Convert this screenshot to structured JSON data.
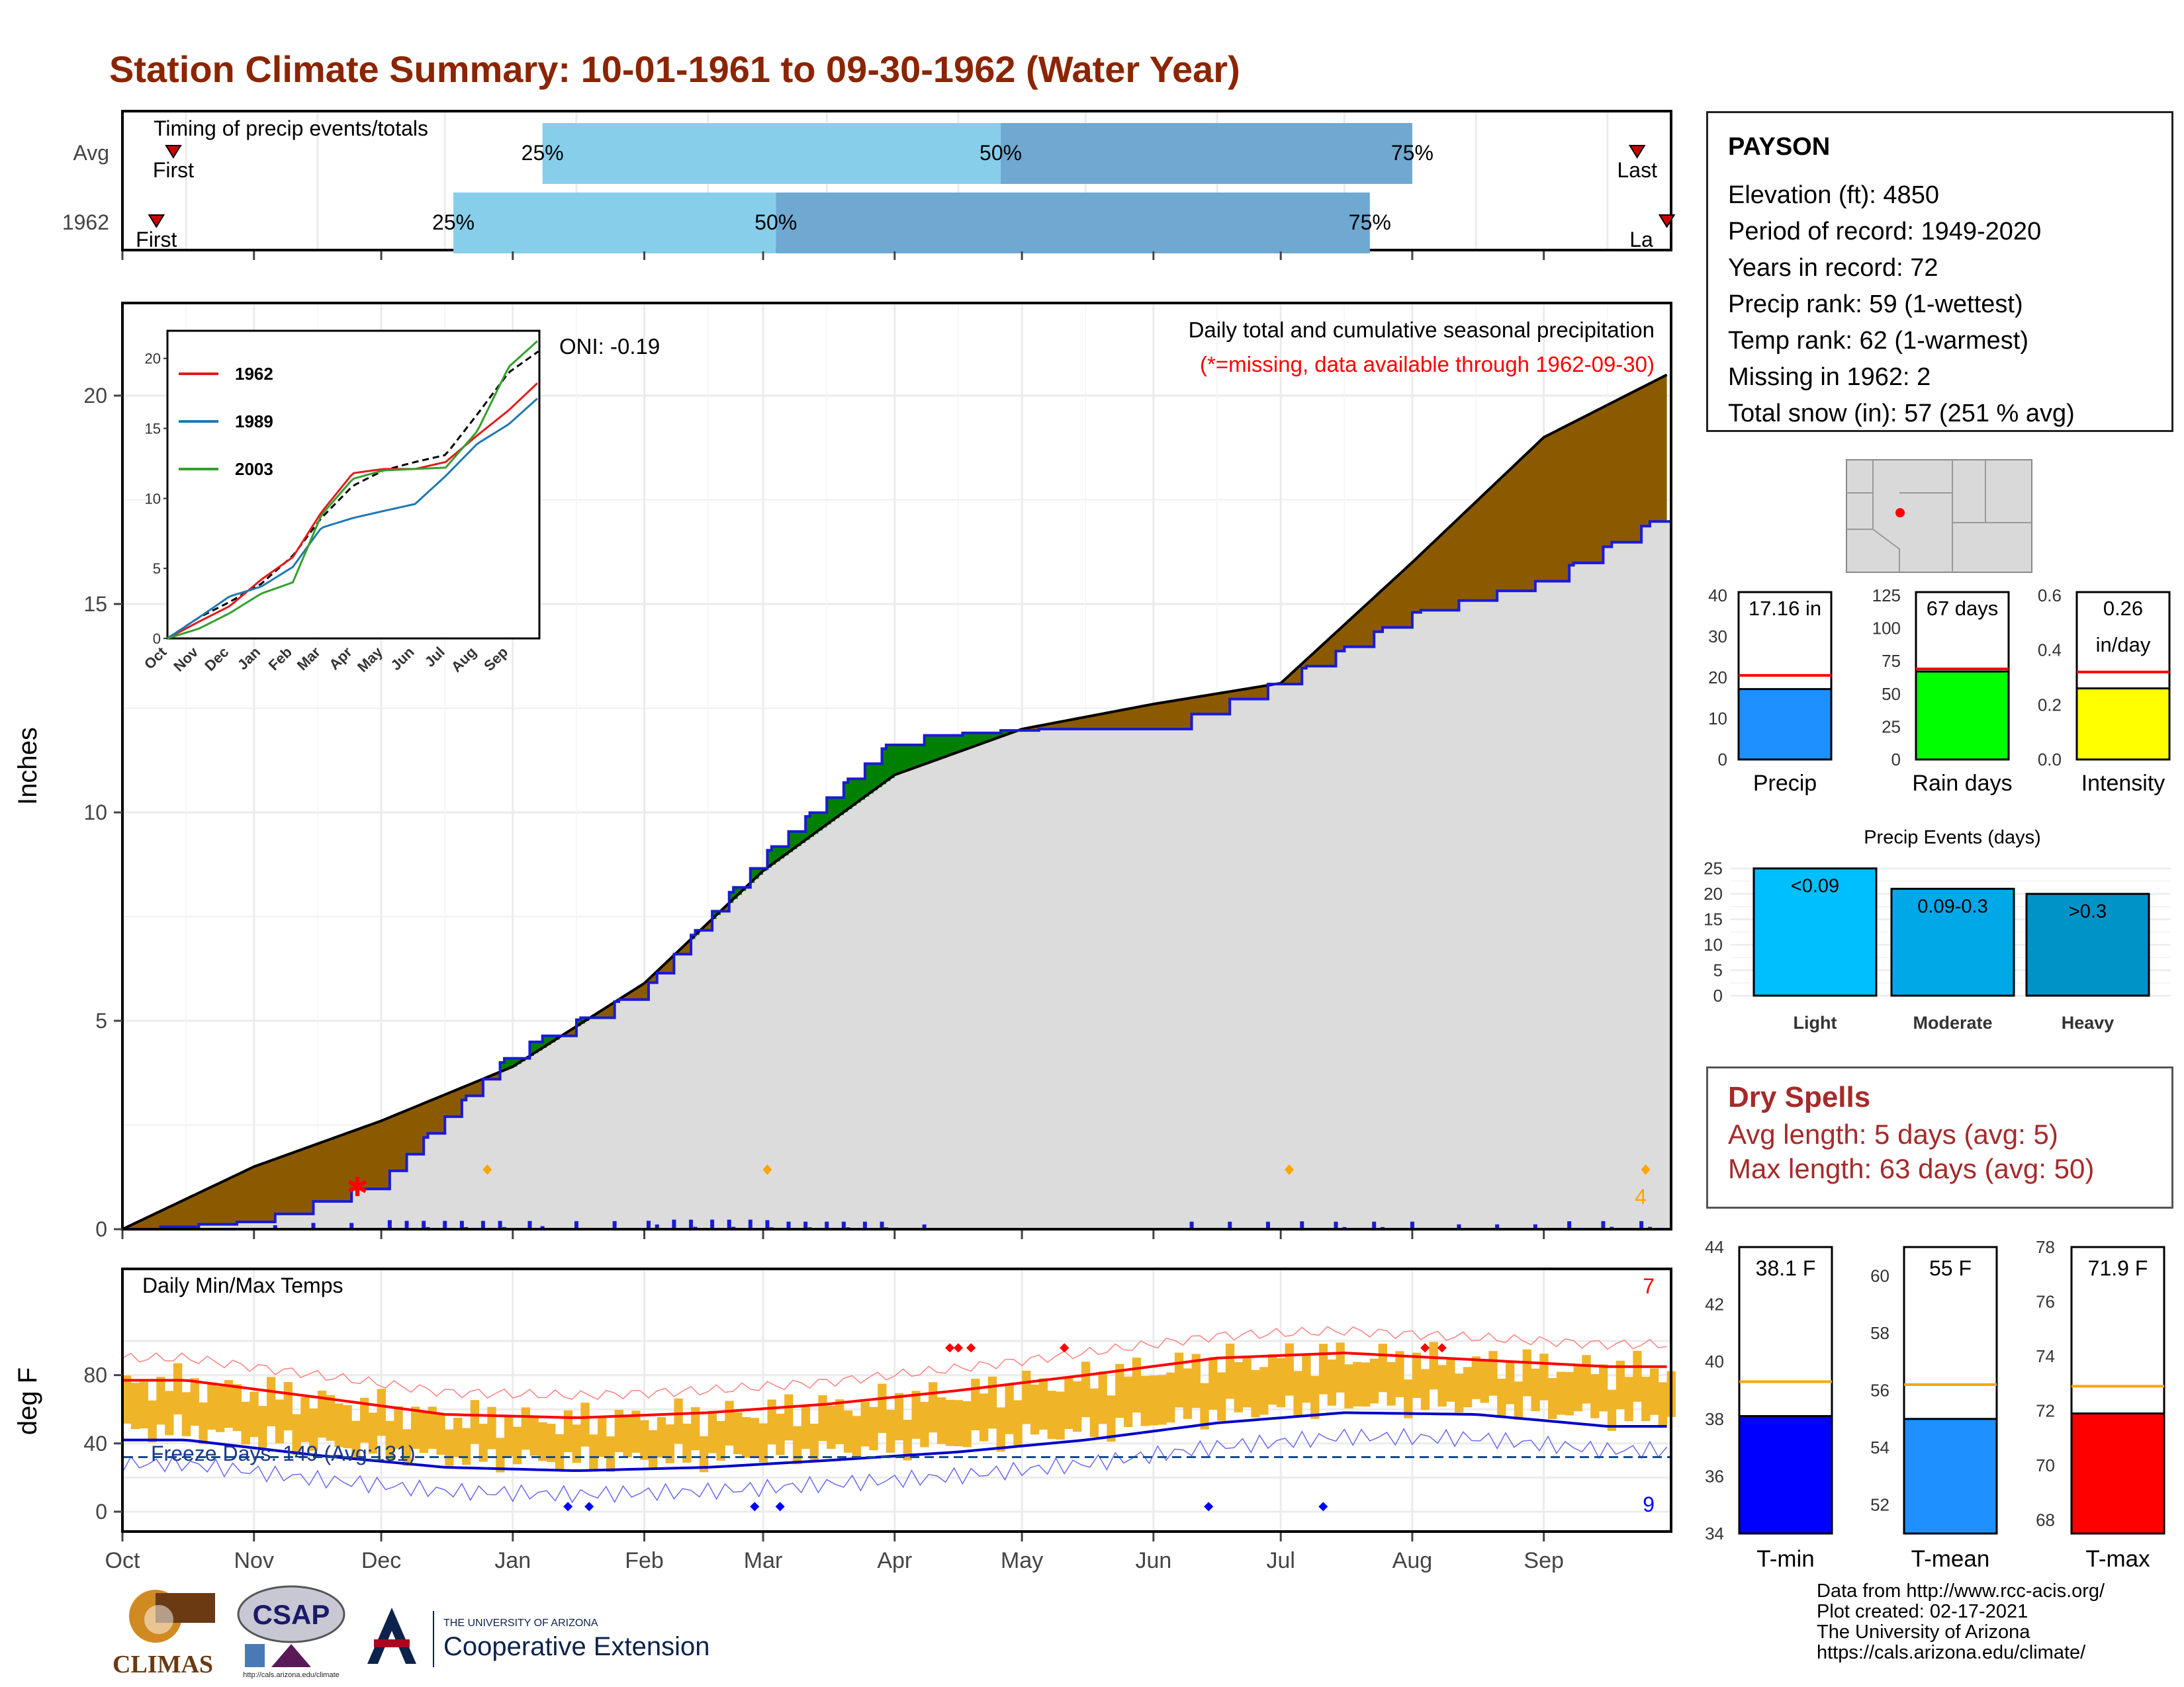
{
  "page": {
    "title": "Station Climate Summary: 10-01-1961 to 09-30-1962 (Water Year)",
    "title_color": "#8b2500"
  },
  "timing_panel": {
    "title": "Timing of precip events/totals",
    "rows": [
      {
        "label": "Avg",
        "first_label": "First",
        "last_label": "Last",
        "p25_label": "25%",
        "p50_label": "50%",
        "p75_label": "75%",
        "first_day": 12,
        "p25_day": 99,
        "p50_day": 207,
        "p75_day": 304,
        "last_day": 357
      },
      {
        "label": "1962",
        "first_label": "First",
        "last_label": "La",
        "p25_label": "25%",
        "p50_label": "50%",
        "p75_label": "75%",
        "first_day": 8,
        "p25_day": 78,
        "p50_day": 154,
        "p75_day": 294,
        "last_day": 364
      }
    ]
  },
  "months": [
    "Oct",
    "Nov",
    "Dec",
    "Jan",
    "Feb",
    "Mar",
    "Apr",
    "May",
    "Jun",
    "Jul",
    "Aug",
    "Sep"
  ],
  "precip_panel": {
    "y_label": "Inches",
    "y_ticks": [
      "0",
      "5",
      "10",
      "15",
      "20"
    ],
    "annotation_title": "Daily total and cumulative seasonal precipitation",
    "annotation_missing": "(*=missing, data available through 1962-09-30)",
    "oni_label": "ONI: -0.19",
    "max_count_label": "4",
    "colors": {
      "deficit": "#8b5a00",
      "surplus": "#008000",
      "observed": "#1a1ad6",
      "normal_fill": "#dcdcdc",
      "missing": "#ff0000",
      "extreme": "#ffa500"
    }
  },
  "inset": {
    "y_ticks": [
      "0",
      "5",
      "10",
      "15",
      "20"
    ],
    "x_ticks": [
      "Oct",
      "Nov",
      "Dec",
      "Jan",
      "Feb",
      "Mar",
      "Apr",
      "May",
      "Jun",
      "Jul",
      "Aug",
      "Sep"
    ],
    "legend": [
      {
        "name": "1962",
        "color": "#e31a1c"
      },
      {
        "name": "1989",
        "color": "#1f78b4"
      },
      {
        "name": "2003",
        "color": "#33a02c"
      }
    ]
  },
  "temp_panel": {
    "y_label": "deg F",
    "title": "Daily Min/Max Temps",
    "y_ticks": [
      "0",
      "40",
      "80"
    ],
    "freeze_label": "Freeze Days: 149 (Avg:131)",
    "max_record_count": "7",
    "min_record_count": "9"
  },
  "station_box": {
    "name": "PAYSON",
    "lines": [
      "Elevation (ft): 4850",
      "Period of record: 1949-2020",
      "Years in record: 72",
      "Precip rank: 59 (1-wettest)",
      "Temp rank: 62 (1-warmest)",
      "Missing in 1962: 2",
      "Total snow (in): 57 (251 % avg)"
    ]
  },
  "mini_bars": {
    "precip": {
      "label": "Precip",
      "value_label": "17.16 in",
      "value": 17.16,
      "avg": 20.5,
      "ymax": 40,
      "ticks": [
        "0",
        "10",
        "20",
        "30",
        "40"
      ],
      "color": "#1e90ff"
    },
    "rain_days": {
      "label": "Rain days",
      "value_label": "67 days",
      "value": 67,
      "avg": 69,
      "ymax": 125,
      "ticks": [
        "0",
        "25",
        "50",
        "75",
        "100",
        "125"
      ],
      "color": "#00ff00"
    },
    "intensity": {
      "label": "Intensity",
      "value_label": "0.26",
      "value_label2": "in/day",
      "value": 0.26,
      "avg": 0.32,
      "ymax": 0.6,
      "ticks": [
        "0.0",
        "0.2",
        "0.4",
        "0.6"
      ],
      "color": "#ffff00"
    }
  },
  "events_panel": {
    "title": "Precip Events (days)",
    "ticks": [
      "0",
      "5",
      "10",
      "15",
      "20",
      "25"
    ],
    "bars": [
      {
        "label": "Light",
        "value": 25,
        "value_label": "<0.09",
        "color": "#00bfff"
      },
      {
        "label": "Moderate",
        "value": 21,
        "value_label": "0.09-0.3",
        "color": "#00a8e8"
      },
      {
        "label": "Heavy",
        "value": 20,
        "value_label": ">0.3",
        "color": "#0093c8"
      }
    ]
  },
  "dry_spells": {
    "title": "Dry Spells",
    "avg_length": "Avg length: 5 days (avg: 5)",
    "max_length": "Max length: 63 days (avg: 50)",
    "color": "#a52a2a"
  },
  "temp_bars": {
    "tmin": {
      "label": "T-min",
      "value_label": "38.1 F",
      "value": 38.1,
      "avg": 39.3,
      "ymin": 34,
      "ymax": 44,
      "ticks": [
        "34",
        "36",
        "38",
        "40",
        "42",
        "44"
      ],
      "color": "#0000ff"
    },
    "tmean": {
      "label": "T-mean",
      "value_label": "55 F",
      "value": 55.0,
      "avg": 56.2,
      "ymin": 51,
      "ymax": 61,
      "ticks": [
        "52",
        "54",
        "56",
        "58",
        "60"
      ],
      "color": "#1e90ff"
    },
    "tmax": {
      "label": "T-max",
      "value_label": "71.9 F",
      "value": 71.9,
      "avg": 72.9,
      "ymin": 67.5,
      "ymax": 78,
      "ticks": [
        "68",
        "70",
        "72",
        "74",
        "76",
        "78"
      ],
      "color": "#ff0000"
    }
  },
  "credits": {
    "lines": [
      "Data from http://www.rcc-acis.org/",
      "Plot created: 02-17-2021",
      "The University of Arizona",
      "https://cals.arizona.edu/climate/"
    ]
  },
  "logos": {
    "climas": "CLIMAS",
    "csap": "CSAP",
    "csap_url": "http://cals.arizona.edu/climate",
    "ua_top": "THE UNIVERSITY OF ARIZONA",
    "ua_main": "Cooperative Extension"
  },
  "chart_data": [
    {
      "type": "area",
      "title": "Daily total and cumulative seasonal precipitation",
      "ylabel": "Inches",
      "ylim": [
        0,
        22
      ],
      "x": [
        "10-01",
        "11-01",
        "12-01",
        "01-01",
        "02-01",
        "03-01",
        "04-01",
        "05-01",
        "06-01",
        "07-01",
        "08-01",
        "09-01",
        "09-30"
      ],
      "series": [
        {
          "name": "average cumulative",
          "values": [
            0,
            1.5,
            2.6,
            3.9,
            5.9,
            8.6,
            10.9,
            12.0,
            12.6,
            13.1,
            16.0,
            19.0,
            20.5
          ]
        },
        {
          "name": "1962 cumulative",
          "values": [
            0,
            0.2,
            1.2,
            4.3,
            5.8,
            9.0,
            11.8,
            12.0,
            12.0,
            13.2,
            14.8,
            15.6,
            17.2
          ]
        }
      ]
    },
    {
      "type": "line",
      "title": "",
      "ylim": [
        -5,
        100
      ],
      "x": [
        "Oct",
        "Nov",
        "Dec",
        "Jan",
        "Feb",
        "Mar",
        "Apr",
        "May",
        "Jun",
        "Jul",
        "Aug",
        "Sep"
      ],
      "series": [
        {
          "name": "normal max",
          "values": [
            77,
            67,
            57,
            55,
            58,
            63,
            71,
            80,
            90,
            93,
            89,
            85
          ]
        },
        {
          "name": "normal min",
          "values": [
            42,
            33,
            26,
            24,
            26,
            30,
            35,
            42,
            52,
            58,
            57,
            50
          ]
        }
      ]
    }
  ]
}
